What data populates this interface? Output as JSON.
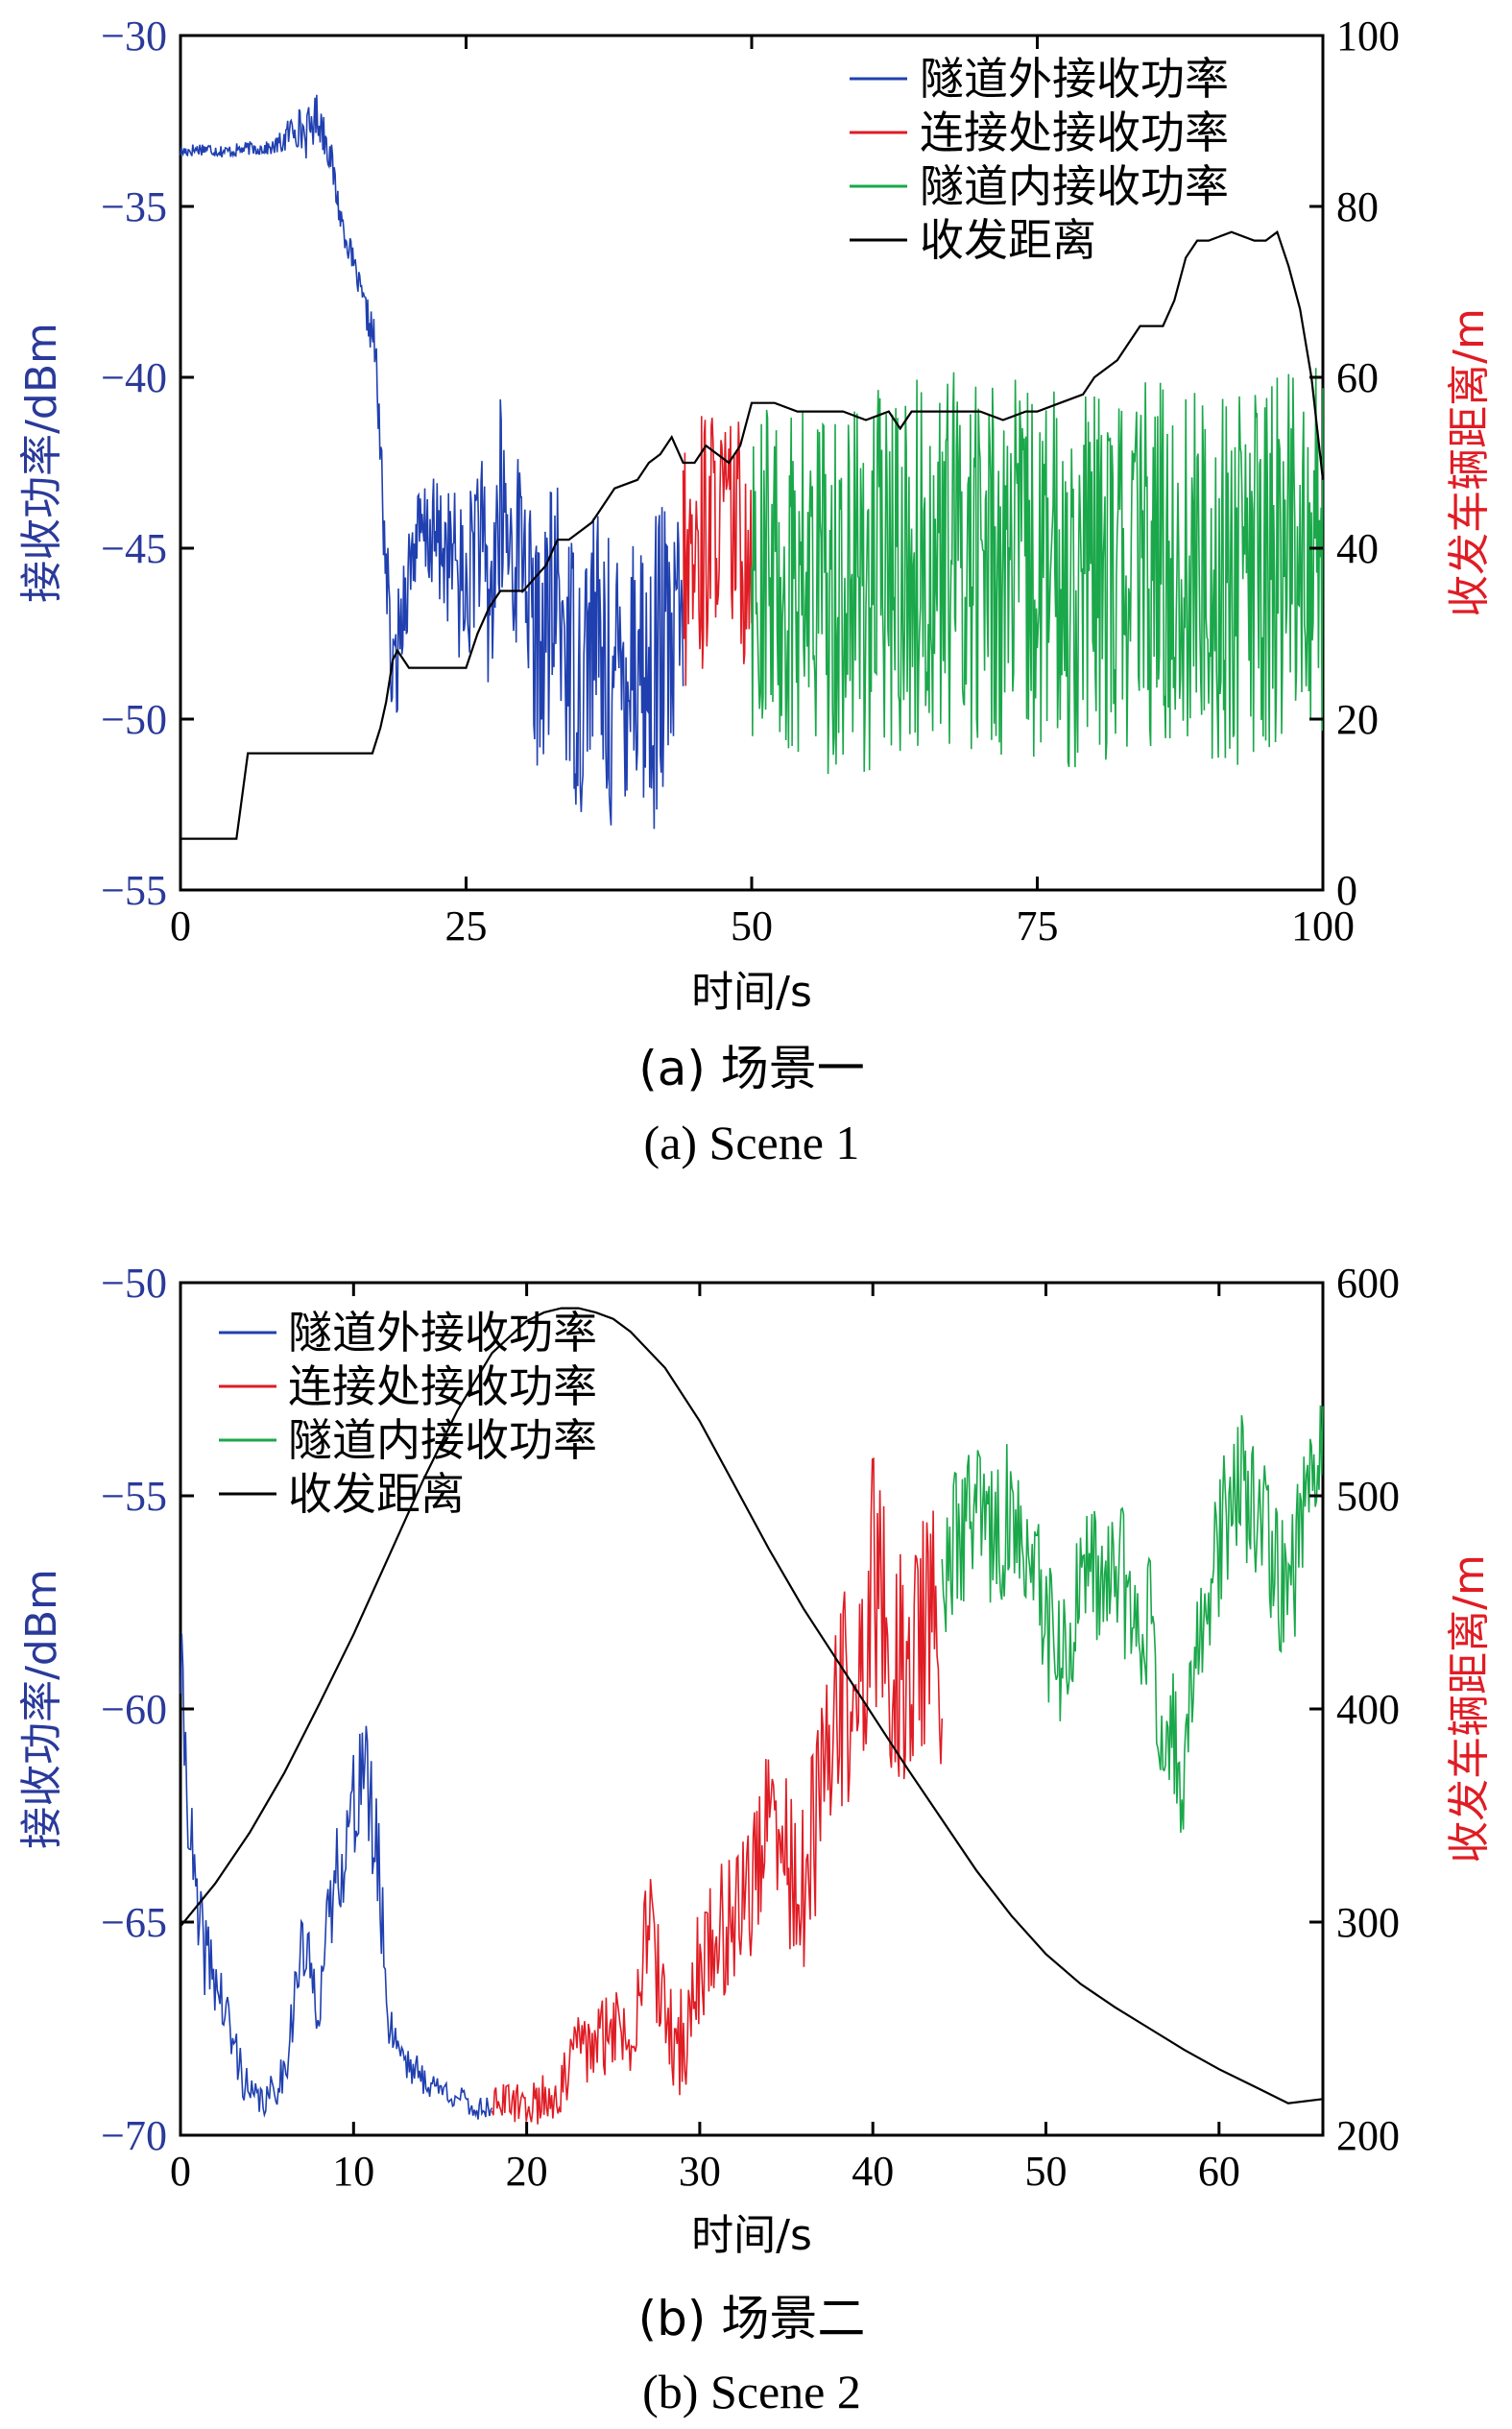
{
  "colors": {
    "outside": "#2040b0",
    "junction": "#e01c24",
    "inside": "#1aa84a",
    "distance": "#000000",
    "left_axis": "#2a3a9a",
    "right_axis": "#e01c24"
  },
  "chart_data": [
    {
      "type": "line",
      "caption_cn": "(a) 场景一",
      "caption_en": "(a) Scene 1",
      "xlabel": "时间/s",
      "ylabel_left": "接收功率/dBm",
      "ylabel_right": "收发车辆距离/m",
      "xlim": [
        0,
        100
      ],
      "ylim_left": [
        -55,
        -30
      ],
      "ylim_right": [
        0,
        100
      ],
      "xticks": [
        "0",
        "25",
        "50",
        "75",
        "100"
      ],
      "xtick_values": [
        0,
        25,
        50,
        75,
        100
      ],
      "yticks_left": [
        "−30",
        "−35",
        "−40",
        "−45",
        "−50",
        "−55"
      ],
      "ytick_values_left": [
        -30,
        -35,
        -40,
        -45,
        -50,
        -55
      ],
      "yticks_right": [
        "100",
        "80",
        "60",
        "40",
        "20",
        "0"
      ],
      "ytick_values_right": [
        100,
        80,
        60,
        40,
        20,
        0
      ],
      "legend_position": "top-right",
      "grid": false,
      "series": [
        {
          "name": "隧道外接收功率",
          "key": "outside",
          "axis": "left",
          "x": [
            0,
            2,
            4,
            6,
            8,
            9,
            10,
            11,
            12,
            13,
            14,
            15,
            16,
            17,
            18,
            18.6,
            19.5,
            20.5,
            22,
            24,
            25,
            26,
            27,
            28,
            29,
            30,
            31,
            32,
            33,
            34,
            35,
            36,
            37,
            38,
            39,
            40,
            41,
            42,
            43,
            44
          ],
          "y": [
            -33.4,
            -33.3,
            -33.4,
            -33.3,
            -33.3,
            -33.1,
            -32.6,
            -32.9,
            -32.3,
            -33.3,
            -35.3,
            -36.5,
            -37.8,
            -39.0,
            -45.5,
            -49.3,
            -46.5,
            -44.8,
            -44.6,
            -45.4,
            -46.6,
            -44.0,
            -47.0,
            -43.8,
            -45.2,
            -44.6,
            -48.2,
            -47.4,
            -46.4,
            -48.0,
            -49.0,
            -47.2,
            -48.5,
            -49.4,
            -48.1,
            -47.6,
            -49.5,
            -47.9,
            -48.7,
            -46.8
          ],
          "spread": [
            0.2,
            0.2,
            0.2,
            0.2,
            0.2,
            0.4,
            0.6,
            0.7,
            0.7,
            0.6,
            0.5,
            0.4,
            0.4,
            0.8,
            1.5,
            1.8,
            1.6,
            1.5,
            1.7,
            2.2,
            2.6,
            2.6,
            3.0,
            3.3,
            3.1,
            2.8,
            3.4,
            3.6,
            3.8,
            3.9,
            4.1,
            4.0,
            4.2,
            4.3,
            4.5,
            4.6,
            4.7,
            4.5,
            4.4,
            3.8
          ]
        },
        {
          "name": "连接处接收功率",
          "key": "junction",
          "axis": "left",
          "x": [
            44,
            45,
            46,
            47,
            48,
            49,
            50
          ],
          "y": [
            -45.8,
            -45.6,
            -44.4,
            -44.0,
            -44.2,
            -44.9,
            -44.5
          ],
          "spread": [
            3.6,
            4.3,
            4.0,
            2.9,
            3.1,
            3.8,
            3.5
          ]
        },
        {
          "name": "隧道内接收功率",
          "key": "inside",
          "axis": "left",
          "x": [
            50,
            55,
            60,
            65,
            70,
            75,
            80,
            85,
            90,
            95,
            98,
            100
          ],
          "y": [
            -45.7,
            -46.2,
            -46.0,
            -45.5,
            -45.2,
            -45.9,
            -46.0,
            -45.5,
            -45.9,
            -45.7,
            -44.8,
            -45.0
          ],
          "spread": [
            5.0,
            5.5,
            5.6,
            5.5,
            5.7,
            5.6,
            5.5,
            5.6,
            5.6,
            5.6,
            5.4,
            5.4
          ]
        },
        {
          "name": "收发距离",
          "key": "distance",
          "axis": "right",
          "x": [
            0,
            4.9,
            5.9,
            10,
            15,
            16.8,
            17.5,
            18,
            18.6,
            19,
            20,
            22,
            24,
            25,
            26,
            27,
            28,
            29,
            30,
            32,
            33,
            34,
            35,
            36,
            38,
            40,
            41,
            42,
            43,
            44,
            45,
            46,
            47,
            48,
            49,
            50,
            52,
            54,
            56,
            58,
            60,
            62,
            63,
            64,
            66,
            68,
            70,
            72,
            74,
            75,
            77,
            79,
            80,
            82,
            83,
            84,
            85,
            86,
            87,
            88,
            89,
            90,
            92,
            94,
            95,
            96,
            97,
            98,
            99,
            100
          ],
          "y": [
            6,
            6,
            16,
            16,
            16,
            16,
            19,
            22,
            27,
            28,
            26,
            26,
            26,
            26,
            30,
            33,
            35,
            35,
            35,
            38,
            41,
            41,
            42,
            43,
            47,
            48,
            50,
            51,
            53,
            50,
            50,
            52,
            51,
            50,
            52,
            57,
            57,
            56,
            56,
            56,
            55,
            56,
            54,
            56,
            56,
            56,
            56,
            55,
            56,
            56,
            57,
            58,
            60,
            62,
            64,
            66,
            66,
            66,
            69,
            74,
            76,
            76,
            77,
            76,
            76,
            77,
            73,
            68,
            60,
            48
          ]
        }
      ]
    },
    {
      "type": "line",
      "caption_cn": "(b) 场景二",
      "caption_en": "(b) Scene 2",
      "xlabel": "时间/s",
      "ylabel_left": "接收功率/dBm",
      "ylabel_right": "收发车辆距离/m",
      "xlim": [
        0,
        66
      ],
      "ylim_left": [
        -70,
        -50
      ],
      "ylim_right": [
        200,
        600
      ],
      "xticks": [
        "0",
        "10",
        "20",
        "30",
        "40",
        "50",
        "60"
      ],
      "xtick_values": [
        0,
        10,
        20,
        30,
        40,
        50,
        60
      ],
      "yticks_left": [
        "−50",
        "−55",
        "−60",
        "−65",
        "−70"
      ],
      "ytick_values_left": [
        -50,
        -55,
        -60,
        -65,
        -70
      ],
      "yticks_right": [
        "600",
        "500",
        "400",
        "300",
        "200"
      ],
      "ytick_values_right": [
        600,
        500,
        400,
        300,
        200
      ],
      "legend_position": "top-left",
      "grid": false,
      "series": [
        {
          "name": "隧道外接收功率",
          "key": "outside",
          "axis": "left",
          "x": [
            0,
            0.5,
            1,
            2,
            3,
            4,
            5,
            6,
            7,
            8,
            9,
            10,
            10.5,
            11,
            11.5,
            12,
            13,
            14,
            15,
            16,
            17,
            18
          ],
          "y": [
            -59.0,
            -62.5,
            -65.2,
            -66.3,
            -67.8,
            -69.1,
            -69.2,
            -68.5,
            -65.6,
            -66.8,
            -63.8,
            -62.5,
            -61.0,
            -62.5,
            -64.0,
            -67.3,
            -68.2,
            -68.7,
            -68.9,
            -69.1,
            -69.4,
            -69.3
          ],
          "spread": [
            1.3,
            1.2,
            1.2,
            0.9,
            0.8,
            0.4,
            0.4,
            0.6,
            0.9,
            0.9,
            1.2,
            1.5,
            1.7,
            1.5,
            1.3,
            0.6,
            0.5,
            0.4,
            0.3,
            0.3,
            0.3,
            0.3
          ]
        },
        {
          "name": "连接处接收功率",
          "key": "junction",
          "axis": "left",
          "x": [
            18,
            20,
            22,
            23,
            24,
            25,
            26,
            27,
            28,
            29,
            30,
            31,
            32,
            33,
            34,
            35,
            36,
            37,
            38,
            39,
            40,
            41,
            42,
            43,
            44
          ],
          "y": [
            -69.2,
            -69.3,
            -69.0,
            -67.8,
            -68.0,
            -67.3,
            -67.8,
            -64.8,
            -67.4,
            -68.0,
            -65.9,
            -65.4,
            -64.8,
            -64.0,
            -62.8,
            -63.5,
            -64.6,
            -62.2,
            -59.5,
            -60.5,
            -56.8,
            -58.8,
            -59.5,
            -57.9,
            -58.8
          ],
          "spread": [
            0.4,
            0.5,
            0.7,
            0.9,
            1.0,
            1.0,
            1.1,
            1.3,
            1.3,
            1.4,
            1.5,
            1.6,
            1.7,
            1.8,
            2.0,
            2.2,
            2.3,
            2.5,
            2.6,
            2.8,
            3.0,
            3.0,
            3.0,
            3.0,
            3.0
          ]
        },
        {
          "name": "隧道内接收功率",
          "key": "inside",
          "axis": "left",
          "x": [
            44,
            45,
            46,
            47,
            48,
            49,
            50,
            51,
            52,
            53,
            54,
            55,
            56,
            57,
            58,
            59,
            60,
            61,
            62,
            63,
            64,
            65,
            66
          ],
          "y": [
            -57.2,
            -55.8,
            -55.4,
            -56.2,
            -55.3,
            -56.9,
            -57.8,
            -59.4,
            -57.3,
            -57.1,
            -56.8,
            -57.2,
            -58.1,
            -60.8,
            -61.2,
            -58.2,
            -56.2,
            -54.5,
            -55.6,
            -56.3,
            -57.8,
            -54.8,
            -53.2
          ],
          "spread": [
            1.6,
            1.8,
            1.8,
            1.9,
            1.8,
            1.8,
            1.8,
            1.9,
            1.8,
            1.8,
            1.9,
            1.8,
            1.8,
            1.9,
            1.8,
            1.8,
            1.7,
            1.7,
            1.8,
            1.8,
            1.8,
            1.6,
            1.5
          ]
        },
        {
          "name": "收发距离",
          "key": "distance",
          "axis": "right",
          "x": [
            0,
            2,
            4,
            6,
            8,
            10,
            12,
            14,
            16,
            18,
            20,
            21,
            22,
            23,
            24,
            25,
            26,
            28,
            30,
            32,
            34,
            36,
            38,
            40,
            42,
            44,
            46,
            48,
            50,
            52,
            54,
            56,
            58,
            60,
            62,
            64,
            66
          ],
          "y": [
            298,
            318,
            342,
            370,
            402,
            435,
            471,
            507,
            540,
            567,
            582,
            586,
            588,
            588,
            586,
            583,
            577,
            560,
            535,
            505,
            475,
            447,
            422,
            397,
            372,
            348,
            324,
            303,
            285,
            271,
            260,
            250,
            240,
            231,
            223,
            215,
            217
          ]
        }
      ]
    }
  ]
}
